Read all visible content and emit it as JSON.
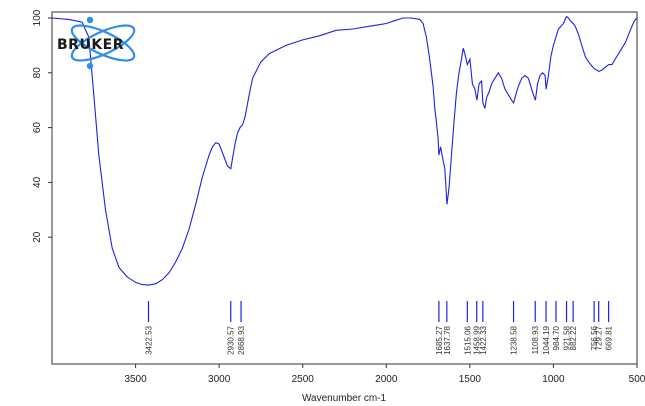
{
  "logo": {
    "text": "BRUKER",
    "color": "#2f8ee8"
  },
  "chart_data": {
    "type": "line",
    "title": "",
    "xlabel": "Wavenumber cm-1",
    "ylabel": "",
    "xlim": [
      4000,
      500
    ],
    "ylim": [
      0,
      100
    ],
    "x_reversed": true,
    "grid": false,
    "line_color": "#2020e0",
    "x_ticks": [
      3500,
      3000,
      2500,
      2000,
      1500,
      1000,
      500
    ],
    "y_ticks": [
      20,
      40,
      60,
      80,
      100
    ],
    "x_tick_labels": [
      "3500",
      "3000",
      "2500",
      "2000",
      "1500",
      "1000",
      "500"
    ],
    "y_tick_labels": [
      "20",
      "40",
      "60",
      "80",
      "100"
    ],
    "series": [
      {
        "values": [
          [
            4000,
            100
          ],
          [
            3900,
            99.5
          ],
          [
            3820,
            98.5
          ],
          [
            3780,
            93
          ],
          [
            3750,
            72
          ],
          [
            3720,
            50
          ],
          [
            3680,
            30
          ],
          [
            3640,
            16
          ],
          [
            3600,
            9
          ],
          [
            3550,
            5.5
          ],
          [
            3500,
            3.5
          ],
          [
            3460,
            2.7
          ],
          [
            3422,
            2.5
          ],
          [
            3380,
            3
          ],
          [
            3340,
            4.5
          ],
          [
            3300,
            7
          ],
          [
            3260,
            11
          ],
          [
            3220,
            16
          ],
          [
            3180,
            23
          ],
          [
            3140,
            32
          ],
          [
            3100,
            42
          ],
          [
            3060,
            50
          ],
          [
            3040,
            53
          ],
          [
            3020,
            54.5
          ],
          [
            3000,
            54
          ],
          [
            2975,
            50
          ],
          [
            2950,
            46
          ],
          [
            2930,
            45
          ],
          [
            2905,
            54
          ],
          [
            2890,
            58
          ],
          [
            2875,
            60
          ],
          [
            2860,
            61
          ],
          [
            2845,
            64
          ],
          [
            2820,
            72
          ],
          [
            2800,
            78
          ],
          [
            2750,
            84
          ],
          [
            2700,
            87
          ],
          [
            2600,
            90
          ],
          [
            2500,
            92
          ],
          [
            2400,
            93.5
          ],
          [
            2300,
            95.5
          ],
          [
            2200,
            96
          ],
          [
            2100,
            97
          ],
          [
            2050,
            97.5
          ],
          [
            2000,
            98
          ],
          [
            1950,
            99
          ],
          [
            1900,
            100
          ],
          [
            1850,
            100
          ],
          [
            1800,
            99.5
          ],
          [
            1780,
            98
          ],
          [
            1760,
            93
          ],
          [
            1740,
            85
          ],
          [
            1720,
            75
          ],
          [
            1710,
            67
          ],
          [
            1700,
            62
          ],
          [
            1690,
            56
          ],
          [
            1685,
            50
          ],
          [
            1675,
            53
          ],
          [
            1660,
            48
          ],
          [
            1650,
            45
          ],
          [
            1637,
            32
          ],
          [
            1625,
            38
          ],
          [
            1610,
            50
          ],
          [
            1595,
            62
          ],
          [
            1580,
            73
          ],
          [
            1565,
            80
          ],
          [
            1550,
            85
          ],
          [
            1540,
            89
          ],
          [
            1530,
            87
          ],
          [
            1515,
            83
          ],
          [
            1500,
            85
          ],
          [
            1485,
            76
          ],
          [
            1470,
            74
          ],
          [
            1458,
            70
          ],
          [
            1445,
            76
          ],
          [
            1430,
            77
          ],
          [
            1422,
            69
          ],
          [
            1410,
            67
          ],
          [
            1400,
            71
          ],
          [
            1385,
            73
          ],
          [
            1370,
            76
          ],
          [
            1350,
            78
          ],
          [
            1330,
            80
          ],
          [
            1310,
            78
          ],
          [
            1290,
            74
          ],
          [
            1270,
            72
          ],
          [
            1250,
            70
          ],
          [
            1238,
            69
          ],
          [
            1225,
            72
          ],
          [
            1210,
            75
          ],
          [
            1190,
            78
          ],
          [
            1170,
            79
          ],
          [
            1150,
            78
          ],
          [
            1130,
            74
          ],
          [
            1120,
            72
          ],
          [
            1108,
            70
          ],
          [
            1095,
            76
          ],
          [
            1080,
            79
          ],
          [
            1065,
            80
          ],
          [
            1050,
            79
          ],
          [
            1044,
            74
          ],
          [
            1030,
            79
          ],
          [
            1015,
            86
          ],
          [
            1000,
            90
          ],
          [
            990,
            92
          ],
          [
            985,
            93
          ],
          [
            970,
            96
          ],
          [
            955,
            97
          ],
          [
            940,
            98
          ],
          [
            930,
            99.5
          ],
          [
            921,
            100.5
          ],
          [
            910,
            100
          ],
          [
            900,
            99
          ],
          [
            882,
            98
          ],
          [
            870,
            97
          ],
          [
            850,
            94
          ],
          [
            830,
            90
          ],
          [
            810,
            86
          ],
          [
            790,
            84
          ],
          [
            770,
            82.5
          ],
          [
            756,
            81.5
          ],
          [
            740,
            81
          ],
          [
            729,
            80.5
          ],
          [
            710,
            81
          ],
          [
            690,
            82
          ],
          [
            669,
            83
          ],
          [
            650,
            83
          ],
          [
            620,
            86
          ],
          [
            590,
            89
          ],
          [
            570,
            91
          ],
          [
            550,
            94
          ],
          [
            530,
            97
          ],
          [
            515,
            99
          ],
          [
            500,
            100
          ]
        ]
      }
    ],
    "peaks": [
      {
        "x": 3422.53,
        "label": "3422.53"
      },
      {
        "x": 2930.57,
        "label": "2930.57"
      },
      {
        "x": 2868.93,
        "label": "2868.93"
      },
      {
        "x": 1685.27,
        "label": "1685.27"
      },
      {
        "x": 1637.78,
        "label": "1637.78"
      },
      {
        "x": 1515.06,
        "label": "1515.06"
      },
      {
        "x": 1458.99,
        "label": "1458.99"
      },
      {
        "x": 1422.33,
        "label": "1422.33"
      },
      {
        "x": 1238.58,
        "label": "1238.58"
      },
      {
        "x": 1108.93,
        "label": "1108.93"
      },
      {
        "x": 1044.19,
        "label": "1044.19"
      },
      {
        "x": 984.7,
        "label": "984.70"
      },
      {
        "x": 921.58,
        "label": "921.58"
      },
      {
        "x": 882.22,
        "label": "882.22"
      },
      {
        "x": 756.56,
        "label": "756.56"
      },
      {
        "x": 729.27,
        "label": "729.27"
      },
      {
        "x": 669.81,
        "label": "669.81"
      }
    ]
  }
}
